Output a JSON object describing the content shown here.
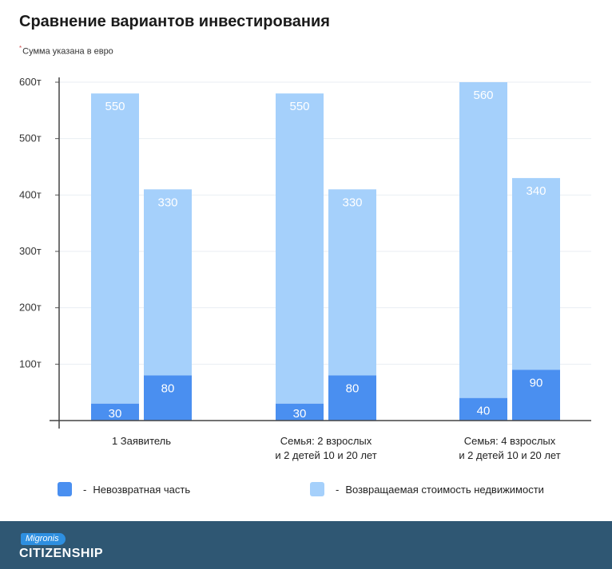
{
  "title": "Сравнение вариантов инвестирования",
  "subtitle_mark": "*",
  "subtitle": "Сумма указана в евро",
  "colors": {
    "nonrefundable": "#4a8ff0",
    "refundable": "#a5d0fb",
    "footer": "#2f5773",
    "logo_badge": "#2e8fe0"
  },
  "chart_data": {
    "type": "bar",
    "categories": [
      [
        "1 Заявитель"
      ],
      [
        "Семья: 2 взрослых",
        "и 2 детей 10 и 20 лет"
      ],
      [
        "Семья: 4 взрослых",
        "и 2 детей 10 и 20 лет"
      ]
    ],
    "series": [
      {
        "name": "Невозвратная часть",
        "color": "#4a8ff0",
        "values": [
          [
            30,
            80
          ],
          [
            30,
            80
          ],
          [
            40,
            90
          ]
        ]
      },
      {
        "name": "Возвращаемая стоимость недвижимости",
        "color": "#a5d0fb",
        "values": [
          [
            550,
            330
          ],
          [
            550,
            330
          ],
          [
            560,
            340
          ]
        ]
      }
    ],
    "stacked": true,
    "bars_per_category": 2,
    "y_ticks": [
      "100т",
      "200т",
      "300т",
      "400т",
      "500т",
      "600т"
    ],
    "y_tick_values": [
      100,
      200,
      300,
      400,
      500,
      600
    ],
    "ylim": [
      0,
      600
    ],
    "grid": true,
    "legend_placement": "bottom"
  },
  "legend": [
    {
      "dash": "-",
      "label": "Невозвратная часть",
      "color": "#4a8ff0"
    },
    {
      "dash": "-",
      "label": "Возвращаемая стоимость недвижимости",
      "color": "#a5d0fb"
    }
  ],
  "footer": {
    "badge": "Migronis",
    "word": "CITIZENSHIP"
  }
}
